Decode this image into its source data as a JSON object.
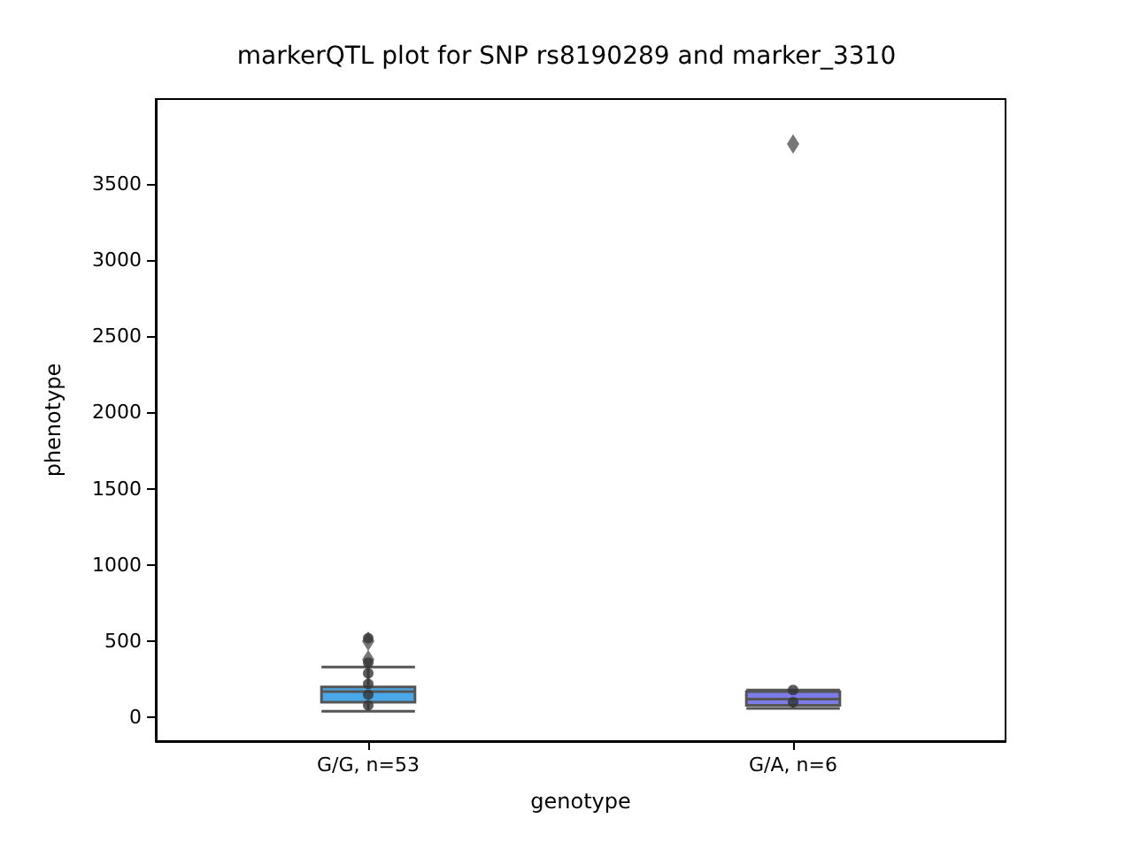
{
  "chart_data": {
    "type": "box",
    "title": "markerQTL plot for SNP rs8190289 and marker_3310",
    "xlabel": "genotype",
    "ylabel": "phenotype",
    "categories": [
      "G/G, n=53",
      "G/A, n=6"
    ],
    "ylim": [
      -155,
      4055
    ],
    "yticks": [
      0,
      500,
      1000,
      1500,
      2000,
      2500,
      3000,
      3500
    ],
    "grid": false,
    "series": [
      {
        "colors": [
          "#4aa8e8",
          "#7b7bea"
        ],
        "boxes": [
          {
            "low": 40,
            "q1": 100,
            "median": 170,
            "q3": 200,
            "high": 330,
            "outliers": [
              380,
              500
            ]
          },
          {
            "low": 60,
            "q1": 80,
            "median": 120,
            "q3": 170,
            "high": 180,
            "outliers": [
              3760
            ]
          }
        ]
      },
      {
        "type": "scatter",
        "color": "#333333",
        "marker": "circle",
        "x": [
          "G/G, n=53",
          "G/G, n=53",
          "G/G, n=53",
          "G/G, n=53",
          "G/G, n=53",
          "G/G, n=53",
          "G/A, n=6",
          "G/A, n=6"
        ],
        "values": [
          520,
          360,
          290,
          220,
          150,
          80,
          180,
          100
        ]
      }
    ]
  }
}
